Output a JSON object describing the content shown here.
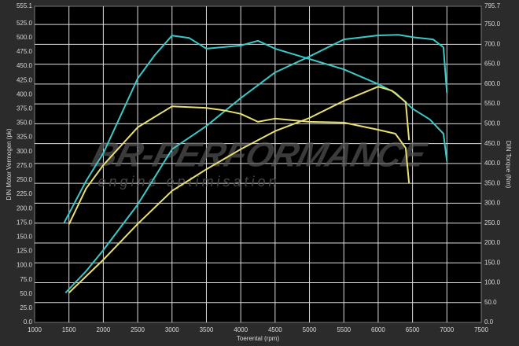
{
  "chart_data": {
    "type": "line",
    "xlabel": "Toerental (rpm)",
    "ylabel": "DIN Motor Vermogen (pk)",
    "y2label": "DIN Torque (Nm)",
    "watermark_title": "BR-PERFORMANCE",
    "watermark_subtitle": "engine optimisation",
    "grid": true,
    "xlim": [
      1000,
      7500
    ],
    "xticks": [
      1000,
      1500,
      2000,
      2500,
      3000,
      3500,
      4000,
      4500,
      5000,
      5500,
      6000,
      6500,
      7000,
      7500
    ],
    "ylim": [
      0,
      555.1
    ],
    "yticks": [
      {
        "value": 0,
        "label": "0.0"
      },
      {
        "value": 25,
        "label": "25.0"
      },
      {
        "value": 50,
        "label": "50.0"
      },
      {
        "value": 75,
        "label": "75.0"
      },
      {
        "value": 100,
        "label": "100.0"
      },
      {
        "value": 125,
        "label": "125.0"
      },
      {
        "value": 150,
        "label": "150.0"
      },
      {
        "value": 175,
        "label": "175.0"
      },
      {
        "value": 200,
        "label": "200.0"
      },
      {
        "value": 225,
        "label": "225.0"
      },
      {
        "value": 250,
        "label": "250.0"
      },
      {
        "value": 275,
        "label": "275.0"
      },
      {
        "value": 300,
        "label": "300.0"
      },
      {
        "value": 325,
        "label": "325.0"
      },
      {
        "value": 350,
        "label": "350.0"
      },
      {
        "value": 375,
        "label": "375.0"
      },
      {
        "value": 400,
        "label": "400.0"
      },
      {
        "value": 425,
        "label": "425.0"
      },
      {
        "value": 450,
        "label": "450.0"
      },
      {
        "value": 475,
        "label": "475.0"
      },
      {
        "value": 500,
        "label": "500.0"
      },
      {
        "value": 525,
        "label": "525.0"
      },
      555.1
    ],
    "y2lim": [
      0,
      795.7
    ],
    "y2ticks": [
      {
        "value": 0,
        "label": "0.0"
      },
      {
        "value": 50,
        "label": "50.0"
      },
      {
        "value": 100,
        "label": "100.0"
      },
      {
        "value": 150,
        "label": "150.0"
      },
      {
        "value": 200,
        "label": "200.0"
      },
      {
        "value": 250,
        "label": "250.0"
      },
      {
        "value": 300,
        "label": "300.0"
      },
      {
        "value": 350,
        "label": "350.0"
      },
      {
        "value": 400,
        "label": "400.0"
      },
      {
        "value": 450,
        "label": "450.0"
      },
      {
        "value": 500,
        "label": "500.0"
      },
      {
        "value": 550,
        "label": "550.0"
      },
      {
        "value": 600,
        "label": "600.0"
      },
      {
        "value": 650,
        "label": "650.0"
      },
      {
        "value": 700,
        "label": "700.0"
      },
      {
        "value": 750,
        "label": "750.0"
      },
      795.7
    ],
    "series": [
      {
        "color": "#3cc8c8",
        "axis": "y",
        "x": [
          1450,
          1750,
          2000,
          2500,
          3000,
          3500,
          4000,
          4500,
          5000,
          5500,
          6000,
          6300,
          6500,
          6800,
          6950,
          7000
        ],
        "values": [
          52,
          90,
          127,
          207,
          304,
          345,
          394,
          439,
          467,
          497,
          504,
          505,
          501,
          497,
          483,
          403
        ]
      },
      {
        "color": "#3cc8c8",
        "axis": "y2",
        "x": [
          1430,
          1750,
          2000,
          2500,
          2750,
          3000,
          3250,
          3500,
          4000,
          4250,
          4500,
          5000,
          5500,
          6000,
          6250,
          6500,
          6750,
          6950,
          7000
        ],
        "values": [
          251,
          356,
          426,
          614,
          673,
          722,
          716,
          689,
          697,
          709,
          689,
          663,
          637,
          600,
          578,
          538,
          511,
          475,
          406
        ]
      },
      {
        "color": "#e8e070",
        "axis": "y2",
        "x": [
          1500,
          1750,
          2000,
          2500,
          3000,
          3500,
          3750,
          4000,
          4250,
          4500,
          5000,
          5500,
          6000,
          6250,
          6400,
          6450
        ],
        "values": [
          247,
          337,
          396,
          491,
          544,
          540,
          534,
          525,
          505,
          513,
          505,
          503,
          485,
          475,
          439,
          350
        ]
      },
      {
        "color": "#e8e070",
        "axis": "y",
        "x": [
          1500,
          2000,
          2500,
          3000,
          3500,
          4000,
          4500,
          5000,
          5500,
          6000,
          6200,
          6400,
          6450
        ],
        "values": [
          52,
          110,
          173,
          231,
          269,
          304,
          336,
          359,
          389,
          414,
          407,
          387,
          320
        ]
      }
    ]
  }
}
